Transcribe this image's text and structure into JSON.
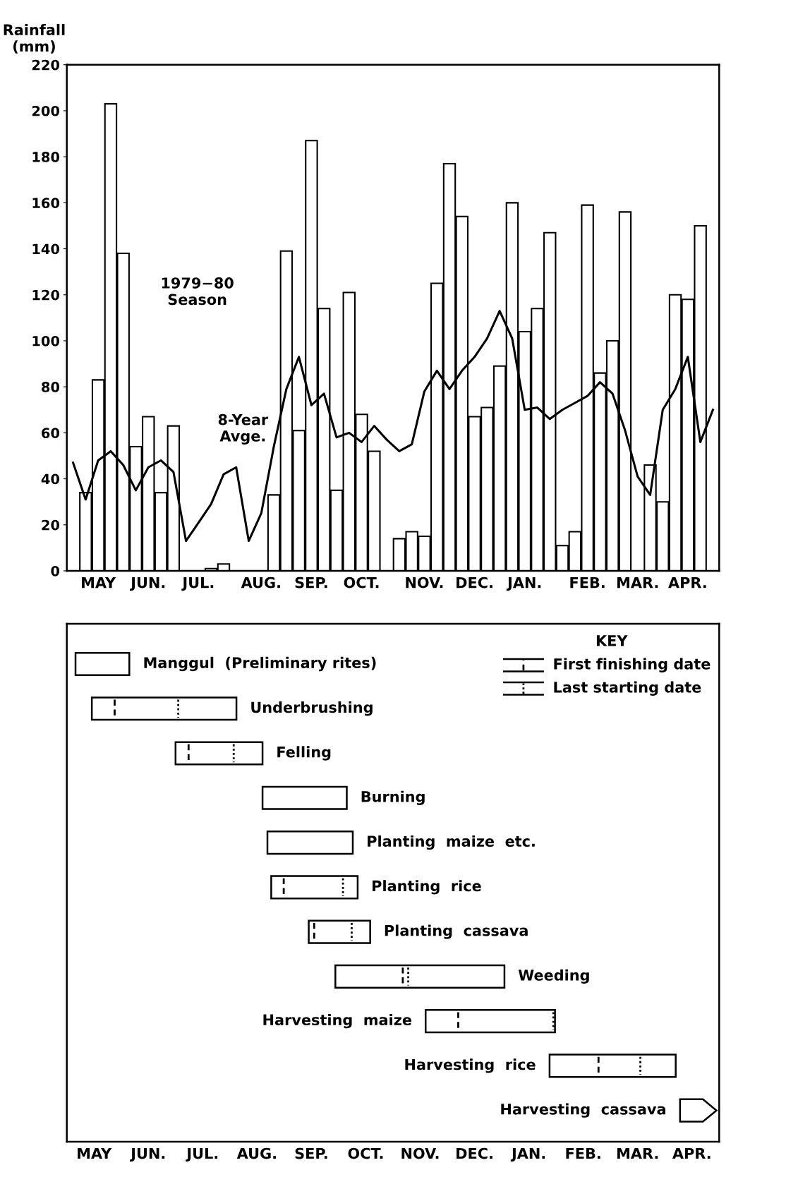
{
  "chart_data": [
    {
      "type": "bar",
      "ylabel": "Rainfall\n(mm)",
      "ylim": [
        0,
        220
      ],
      "yticks": [
        0,
        20,
        40,
        60,
        80,
        100,
        120,
        140,
        160,
        180,
        200,
        220
      ],
      "grid": false,
      "legend": false,
      "categories": [
        null,
        null,
        "MAY",
        null,
        null,
        null,
        "JUN.",
        null,
        null,
        null,
        "JUL.",
        null,
        null,
        null,
        null,
        "AUG.",
        null,
        null,
        null,
        "SEP.",
        null,
        null,
        null,
        "OCT.",
        null,
        null,
        null,
        null,
        "NOV.",
        null,
        null,
        null,
        "DEC.",
        null,
        null,
        null,
        "JAN.",
        null,
        null,
        null,
        null,
        "FEB.",
        null,
        null,
        null,
        "MAR.",
        null,
        null,
        null,
        "APR.",
        null,
        null
      ],
      "series": [
        {
          "name": "1979−80\nSeason",
          "color": "#ffffff",
          "values": [
            null,
            34,
            83,
            203,
            138,
            54,
            67,
            34,
            63,
            null,
            null,
            1,
            3,
            null,
            null,
            null,
            33,
            139,
            61,
            187,
            114,
            35,
            121,
            68,
            52,
            null,
            14,
            17,
            15,
            125,
            177,
            154,
            67,
            71,
            89,
            160,
            104,
            114,
            147,
            11,
            17,
            159,
            86,
            100,
            156,
            null,
            46,
            30,
            120,
            118,
            150,
            null
          ]
        },
        {
          "name": "8-Year\nAvge.",
          "type": "line",
          "color": "#000000",
          "values": [
            47,
            31,
            48,
            52,
            46,
            35,
            45,
            48,
            43,
            13,
            21,
            29,
            42,
            45,
            13,
            25,
            54,
            79,
            93,
            72,
            77,
            58,
            60,
            56,
            63,
            57,
            52,
            55,
            78,
            87,
            79,
            87,
            93,
            101,
            113,
            101,
            70,
            71,
            66,
            70,
            73,
            76,
            82,
            77,
            61,
            41,
            33,
            70,
            79,
            93,
            56,
            70
          ]
        }
      ]
    },
    {
      "type": "other",
      "categories": [
        "MAY",
        "JUN.",
        "JUL.",
        "AUG.",
        "SEP.",
        "OCT.",
        "NOV.",
        "DEC.",
        "JAN.",
        "FEB.",
        "MAR.",
        "APR."
      ],
      "annotations": [
        "Manggul  (Preliminary rites)",
        "Underbrushing",
        "Felling",
        "Burning",
        "Planting  maize  etc.",
        "Planting  rice",
        "Planting  cassava",
        "Weeding",
        "Harvesting  maize",
        "Harvesting  rice",
        "Harvesting  cassava",
        "KEY",
        "First finishing date",
        "Last starting date"
      ]
    }
  ]
}
